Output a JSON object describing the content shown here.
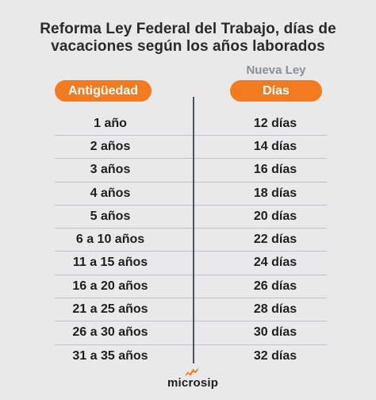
{
  "title": {
    "line1": "Reforma Ley Federal del Trabajo, días de",
    "line2": "vacaciones según los años laborados"
  },
  "header": {
    "nueva_ley": "Nueva Ley",
    "col_left": "Antigüedad",
    "col_right": "Días"
  },
  "rows": [
    {
      "antiguedad": "1 año",
      "dias": "12 días"
    },
    {
      "antiguedad": "2 años",
      "dias": "14 días"
    },
    {
      "antiguedad": "3 años",
      "dias": "16 días"
    },
    {
      "antiguedad": "4 años",
      "dias": "18 días"
    },
    {
      "antiguedad": "5 años",
      "dias": "20 días"
    },
    {
      "antiguedad": "6 a 10 años",
      "dias": "22 días"
    },
    {
      "antiguedad": "11 a 15 años",
      "dias": "24 días"
    },
    {
      "antiguedad": "16 a 20 años",
      "dias": "26 días"
    },
    {
      "antiguedad": "21 a 25 años",
      "dias": "28 días"
    },
    {
      "antiguedad": "26 a 30 años",
      "dias": "30 días"
    },
    {
      "antiguedad": "31 a 35 años",
      "dias": "32 días"
    }
  ],
  "brand": {
    "name": "microsip",
    "accent": "#f47a20",
    "icon": "microsip-flame-icon"
  }
}
